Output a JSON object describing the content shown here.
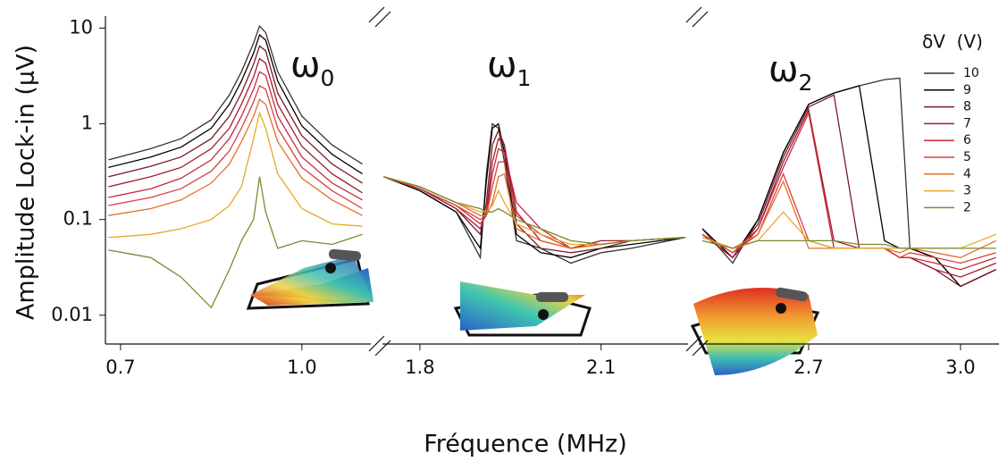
{
  "chart_data": {
    "type": "line",
    "ylabel": "Amplitude Lock-in (μV)",
    "xlabel": "Fréquence (MHz)",
    "log_y": true,
    "ylim": [
      0.005,
      12
    ],
    "yticks": [
      10,
      1,
      0.1,
      0.01
    ],
    "legend_title": "δV  (V)",
    "legend": "upper right",
    "series": [
      {
        "name": "10",
        "color": "#3b3030",
        "values": [
          [
            0.42,
            0.55,
            0.7,
            1.1,
            2,
            3.5,
            7,
            10.5,
            9,
            3.5,
            1.2,
            0.6,
            0.38
          ],
          [
            0.28,
            0.2,
            0.12,
            0.04,
            0.3,
            1.0,
            0.9,
            0.4,
            0.06,
            0.05,
            0.035,
            0.045,
            0.05,
            0.065
          ],
          [
            0.08,
            0.035,
            0.1,
            0.5,
            1.6,
            2.1,
            2.5,
            2.9,
            3.0,
            0.05,
            0.04,
            0.02,
            0.03
          ]
        ]
      },
      {
        "name": "9",
        "color": "#000000",
        "values": [
          [
            0.35,
            0.45,
            0.57,
            0.9,
            1.6,
            2.8,
            5.5,
            8.5,
            7.5,
            2.8,
            0.95,
            0.48,
            0.3
          ],
          [
            0.28,
            0.2,
            0.12,
            0.05,
            0.25,
            0.9,
            1.0,
            0.5,
            0.07,
            0.045,
            0.04,
            0.05,
            0.055,
            0.065
          ],
          [
            0.08,
            0.04,
            0.1,
            0.5,
            1.6,
            2.1,
            2.5,
            0.06,
            0.05,
            0.05,
            0.04,
            0.02,
            0.03
          ]
        ]
      },
      {
        "name": "8",
        "color": "#7a1a2a",
        "values": [
          [
            0.28,
            0.36,
            0.45,
            0.7,
            1.2,
            2.1,
            4.2,
            6.5,
            5.8,
            2.1,
            0.75,
            0.38,
            0.24
          ],
          [
            0.28,
            0.21,
            0.13,
            0.07,
            0.15,
            0.6,
            0.85,
            0.6,
            0.09,
            0.05,
            0.045,
            0.05,
            0.06,
            0.065
          ],
          [
            0.07,
            0.04,
            0.09,
            0.45,
            1.5,
            2.0,
            0.05,
            0.05,
            0.04,
            0.04,
            0.03,
            0.02,
            0.03
          ]
        ]
      },
      {
        "name": "7",
        "color": "#a01c2c",
        "values": [
          [
            0.22,
            0.28,
            0.35,
            0.55,
            0.9,
            1.6,
            3.1,
            4.8,
            4.3,
            1.6,
            0.58,
            0.3,
            0.19
          ],
          [
            0.28,
            0.21,
            0.13,
            0.08,
            0.12,
            0.4,
            0.7,
            0.6,
            0.12,
            0.06,
            0.05,
            0.06,
            0.06,
            0.065
          ],
          [
            0.07,
            0.04,
            0.08,
            0.4,
            1.4,
            0.06,
            0.05,
            0.05,
            0.04,
            0.04,
            0.03,
            0.025,
            0.035
          ]
        ]
      },
      {
        "name": "6",
        "color": "#c8283a",
        "values": [
          [
            0.17,
            0.21,
            0.27,
            0.42,
            0.7,
            1.2,
            2.3,
            3.5,
            3.2,
            1.2,
            0.45,
            0.24,
            0.16
          ],
          [
            0.28,
            0.21,
            0.14,
            0.09,
            0.11,
            0.3,
            0.55,
            0.5,
            0.15,
            0.08,
            0.05,
            0.055,
            0.06,
            0.065
          ],
          [
            0.07,
            0.045,
            0.08,
            0.35,
            1.3,
            0.05,
            0.05,
            0.05,
            0.04,
            0.04,
            0.035,
            0.03,
            0.04
          ]
        ]
      },
      {
        "name": "5",
        "color": "#d84040",
        "values": [
          [
            0.14,
            0.17,
            0.21,
            0.32,
            0.52,
            0.9,
            1.7,
            2.5,
            2.3,
            0.9,
            0.35,
            0.2,
            0.13
          ],
          [
            0.28,
            0.21,
            0.14,
            0.1,
            0.11,
            0.22,
            0.4,
            0.4,
            0.11,
            0.07,
            0.05,
            0.055,
            0.06,
            0.065
          ],
          [
            0.07,
            0.045,
            0.07,
            0.3,
            0.06,
            0.05,
            0.05,
            0.05,
            0.04,
            0.045,
            0.04,
            0.035,
            0.045
          ]
        ]
      },
      {
        "name": "4",
        "color": "#e0702a",
        "values": [
          [
            0.11,
            0.13,
            0.16,
            0.24,
            0.38,
            0.65,
            1.2,
            1.8,
            1.6,
            0.65,
            0.27,
            0.16,
            0.11
          ],
          [
            0.28,
            0.22,
            0.15,
            0.11,
            0.11,
            0.15,
            0.28,
            0.3,
            0.08,
            0.06,
            0.05,
            0.055,
            0.06,
            0.065
          ],
          [
            0.065,
            0.05,
            0.07,
            0.25,
            0.05,
            0.05,
            0.05,
            0.05,
            0.045,
            0.05,
            0.045,
            0.04,
            0.06
          ]
        ]
      },
      {
        "name": "3",
        "color": "#e8a82a",
        "values": [
          [
            0.065,
            0.07,
            0.08,
            0.1,
            0.14,
            0.22,
            0.7,
            1.3,
            0.9,
            0.3,
            0.13,
            0.09,
            0.085
          ],
          [
            0.28,
            0.22,
            0.15,
            0.12,
            0.12,
            0.14,
            0.2,
            0.15,
            0.09,
            0.07,
            0.055,
            0.055,
            0.06,
            0.065
          ],
          [
            0.065,
            0.05,
            0.06,
            0.12,
            0.06,
            0.05,
            0.05,
            0.05,
            0.05,
            0.05,
            0.05,
            0.05,
            0.07
          ]
        ]
      },
      {
        "name": "2",
        "color": "#7a8a30",
        "values": [
          [
            0.048,
            0.04,
            0.025,
            0.012,
            0.03,
            0.06,
            0.1,
            0.28,
            0.12,
            0.05,
            0.06,
            0.055,
            0.07
          ],
          [
            0.28,
            0.22,
            0.15,
            0.13,
            0.12,
            0.12,
            0.13,
            0.12,
            0.1,
            0.08,
            0.06,
            0.055,
            0.06,
            0.065
          ],
          [
            0.06,
            0.05,
            0.06,
            0.06,
            0.06,
            0.06,
            0.055,
            0.055,
            0.05,
            0.05,
            0.05,
            0.05,
            0.05
          ]
        ]
      }
    ],
    "panels": [
      {
        "symbol": "ω",
        "subscript": "0",
        "xlim": [
          0.675,
          1.114
        ],
        "xticks": [
          0.7,
          {
            "value": 1,
            "label": "1.0"
          }
        ],
        "x": [
          0.68,
          0.75,
          0.8,
          0.85,
          0.88,
          0.9,
          0.92,
          0.93,
          0.94,
          0.96,
          1.0,
          1.05,
          1.1
        ]
      },
      {
        "symbol": "ω",
        "subscript": "1",
        "xlim": [
          1.738,
          2.244
        ],
        "xticks": [
          1.8,
          2.1
        ],
        "x": [
          1.74,
          1.8,
          1.86,
          1.9,
          1.91,
          1.92,
          1.93,
          1.94,
          1.96,
          2.0,
          2.05,
          2.1,
          2.15,
          2.24
        ]
      },
      {
        "symbol": "ω",
        "subscript": "2",
        "xlim": [
          2.483,
          3.076
        ],
        "xticks": [
          2.7,
          {
            "value": 3,
            "label": "3.0"
          }
        ],
        "x": [
          2.49,
          2.55,
          2.6,
          2.65,
          2.7,
          2.75,
          2.8,
          2.85,
          2.88,
          2.9,
          2.95,
          3.0,
          3.07
        ]
      }
    ]
  }
}
